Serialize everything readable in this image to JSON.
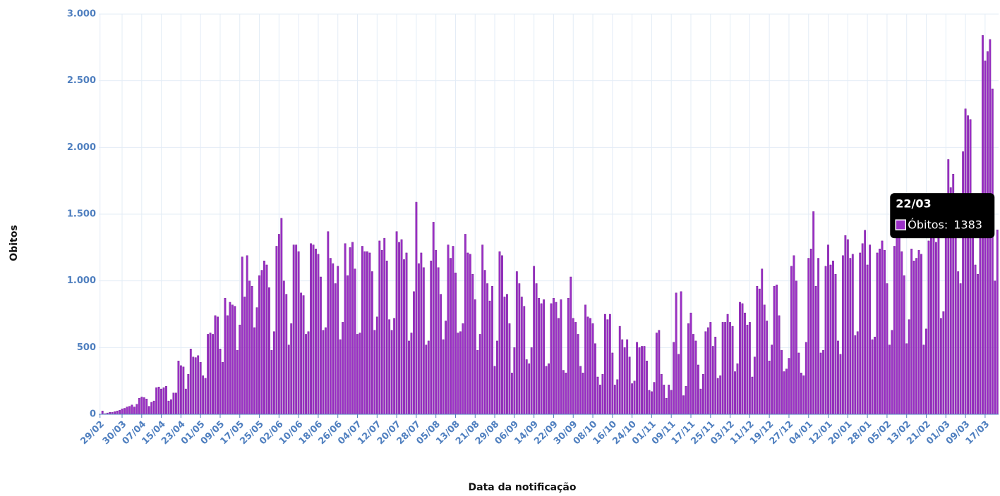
{
  "chart_data": {
    "type": "bar",
    "y_label": "Obitos",
    "x_label": "Data da notificação",
    "color": "#9b2fc6",
    "grid": true,
    "ylim": [
      0,
      3000
    ],
    "yticks": [
      0,
      500,
      {
        "value": 1000,
        "label": "1.000"
      },
      {
        "value": 1500,
        "label": "1.500"
      },
      {
        "value": 2000,
        "label": "2.000"
      },
      {
        "value": 2500,
        "label": "2.500"
      },
      {
        "value": 3000,
        "label": "3.000"
      }
    ],
    "tooltip": {
      "title": "22/03",
      "label": "Óbitos:"
    },
    "categories": [
      "29/02",
      null,
      null,
      null,
      null,
      null,
      null,
      null,
      null,
      "30/03",
      null,
      null,
      null,
      null,
      null,
      null,
      null,
      "07/04",
      null,
      null,
      null,
      null,
      null,
      null,
      null,
      "15/04",
      null,
      null,
      null,
      null,
      null,
      null,
      null,
      "23/04",
      null,
      null,
      null,
      null,
      null,
      null,
      null,
      "01/05",
      null,
      null,
      null,
      null,
      null,
      null,
      null,
      "09/05",
      null,
      null,
      null,
      null,
      null,
      null,
      null,
      "17/05",
      null,
      null,
      null,
      null,
      null,
      null,
      null,
      "25/05",
      null,
      null,
      null,
      null,
      null,
      null,
      null,
      "02/06",
      null,
      null,
      null,
      null,
      null,
      null,
      null,
      "10/06",
      null,
      null,
      null,
      null,
      null,
      null,
      null,
      "18/06",
      null,
      null,
      null,
      null,
      null,
      null,
      null,
      "26/06",
      null,
      null,
      null,
      null,
      null,
      null,
      null,
      "04/07",
      null,
      null,
      null,
      null,
      null,
      null,
      null,
      "12/07",
      null,
      null,
      null,
      null,
      null,
      null,
      null,
      "20/07",
      null,
      null,
      null,
      null,
      null,
      null,
      null,
      "28/07",
      null,
      null,
      null,
      null,
      null,
      null,
      null,
      "05/08",
      null,
      null,
      null,
      null,
      null,
      null,
      null,
      "13/08",
      null,
      null,
      null,
      null,
      null,
      null,
      null,
      "21/08",
      null,
      null,
      null,
      null,
      null,
      null,
      null,
      "29/08",
      null,
      null,
      null,
      null,
      null,
      null,
      null,
      "06/09",
      null,
      null,
      null,
      null,
      null,
      null,
      null,
      "14/09",
      null,
      null,
      null,
      null,
      null,
      null,
      null,
      "22/09",
      null,
      null,
      null,
      null,
      null,
      null,
      null,
      "30/09",
      null,
      null,
      null,
      null,
      null,
      null,
      null,
      "08/10",
      null,
      null,
      null,
      null,
      null,
      null,
      null,
      "16/10",
      null,
      null,
      null,
      null,
      null,
      null,
      null,
      "24/10",
      null,
      null,
      null,
      null,
      null,
      null,
      null,
      "01/11",
      null,
      null,
      null,
      null,
      null,
      null,
      null,
      "09/11",
      null,
      null,
      null,
      null,
      null,
      null,
      null,
      "17/11",
      null,
      null,
      null,
      null,
      null,
      null,
      null,
      "25/11",
      null,
      null,
      null,
      null,
      null,
      null,
      null,
      "03/12",
      null,
      null,
      null,
      null,
      null,
      null,
      null,
      "11/12",
      null,
      null,
      null,
      null,
      null,
      null,
      null,
      "19/12",
      null,
      null,
      null,
      null,
      null,
      null,
      null,
      "27/12",
      null,
      null,
      null,
      null,
      null,
      null,
      null,
      "04/01",
      null,
      null,
      null,
      null,
      null,
      null,
      null,
      "12/01",
      null,
      null,
      null,
      null,
      null,
      null,
      null,
      "20/01",
      null,
      null,
      null,
      null,
      null,
      null,
      null,
      "28/01",
      null,
      null,
      null,
      null,
      null,
      null,
      null,
      "05/02",
      null,
      null,
      null,
      null,
      null,
      null,
      null,
      "13/02",
      null,
      null,
      null,
      null,
      null,
      null,
      null,
      "21/02",
      null,
      null,
      null,
      null,
      null,
      null,
      null,
      "01/03",
      null,
      null,
      null,
      null,
      null,
      null,
      null,
      "09/03",
      null,
      null,
      null,
      null,
      null,
      null,
      null,
      "17/03",
      null,
      null,
      null,
      null,
      null
    ],
    "values": [
      0,
      25,
      5,
      10,
      15,
      15,
      20,
      25,
      30,
      40,
      45,
      55,
      60,
      70,
      55,
      75,
      120,
      130,
      125,
      115,
      60,
      90,
      100,
      200,
      205,
      190,
      200,
      210,
      100,
      110,
      160,
      160,
      400,
      365,
      355,
      190,
      300,
      490,
      430,
      425,
      440,
      390,
      290,
      270,
      600,
      610,
      600,
      740,
      730,
      490,
      390,
      870,
      740,
      840,
      820,
      810,
      480,
      670,
      1180,
      880,
      1190,
      1000,
      960,
      650,
      800,
      1040,
      1080,
      1150,
      1120,
      950,
      480,
      620,
      1260,
      1350,
      1470,
      1000,
      900,
      520,
      680,
      1270,
      1270,
      1220,
      910,
      890,
      600,
      620,
      1280,
      1270,
      1240,
      1200,
      1030,
      630,
      650,
      1370,
      1170,
      1130,
      980,
      1110,
      560,
      690,
      1280,
      1040,
      1250,
      1290,
      1090,
      600,
      610,
      1260,
      1220,
      1220,
      1210,
      1070,
      630,
      730,
      1300,
      1230,
      1320,
      1150,
      710,
      630,
      720,
      1370,
      1290,
      1310,
      1160,
      1210,
      550,
      610,
      920,
      1590,
      1130,
      1210,
      1100,
      520,
      550,
      1150,
      1440,
      1230,
      1100,
      900,
      560,
      700,
      1270,
      1170,
      1260,
      1060,
      610,
      620,
      680,
      1350,
      1210,
      1200,
      1050,
      860,
      480,
      600,
      1270,
      1080,
      980,
      850,
      960,
      360,
      550,
      1220,
      1190,
      880,
      900,
      680,
      310,
      500,
      1070,
      980,
      880,
      810,
      410,
      380,
      500,
      1110,
      980,
      870,
      830,
      860,
      360,
      380,
      830,
      870,
      840,
      720,
      860,
      330,
      310,
      870,
      1030,
      720,
      690,
      600,
      360,
      310,
      820,
      730,
      720,
      680,
      530,
      280,
      220,
      300,
      750,
      710,
      750,
      460,
      220,
      260,
      660,
      560,
      500,
      560,
      430,
      230,
      250,
      540,
      500,
      510,
      510,
      400,
      180,
      170,
      240,
      610,
      630,
      300,
      220,
      120,
      220,
      180,
      540,
      910,
      450,
      920,
      140,
      210,
      680,
      760,
      600,
      550,
      370,
      190,
      300,
      620,
      650,
      690,
      510,
      580,
      270,
      290,
      690,
      690,
      750,
      690,
      660,
      320,
      380,
      840,
      830,
      760,
      670,
      690,
      280,
      430,
      960,
      940,
      1090,
      820,
      700,
      400,
      520,
      960,
      970,
      740,
      480,
      320,
      340,
      420,
      1110,
      1190,
      1000,
      460,
      310,
      290,
      540,
      1170,
      1240,
      1520,
      960,
      1170,
      460,
      480,
      1110,
      1270,
      1120,
      1150,
      1050,
      550,
      450,
      1190,
      1340,
      1310,
      1170,
      1200,
      590,
      620,
      1210,
      1280,
      1380,
      1120,
      1270,
      560,
      580,
      1210,
      1240,
      1300,
      1230,
      980,
      520,
      630,
      1260,
      1330,
      1380,
      1220,
      1040,
      530,
      710,
      1240,
      1150,
      1170,
      1230,
      1200,
      520,
      640,
      1300,
      1400,
      1480,
      1290,
      1510,
      720,
      770,
      1640,
      1910,
      1700,
      1800,
      1500,
      1070,
      980,
      1970,
      2290,
      2240,
      2210,
      1500,
      1120,
      1050,
      1500,
      2840,
      2650,
      2720,
      2810,
      2440,
      1000,
      1383
    ]
  }
}
